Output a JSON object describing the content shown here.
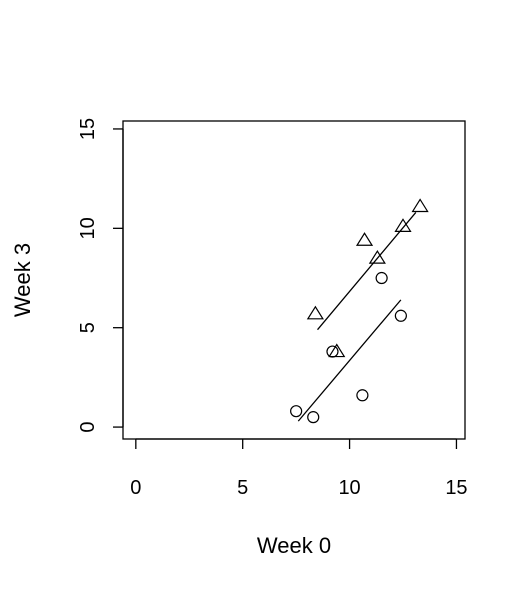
{
  "chart_data": {
    "type": "scatter",
    "title": "",
    "xlabel": "Week 0",
    "ylabel": "Week 3",
    "xlim": [
      -0.6,
      15.4
    ],
    "ylim": [
      -0.6,
      15.4
    ],
    "xticks": [
      0,
      5,
      10,
      15
    ],
    "yticks": [
      0,
      5,
      10,
      15
    ],
    "grid": false,
    "series": [
      {
        "marker": "circle",
        "points": [
          {
            "x": 7.5,
            "y": 0.8
          },
          {
            "x": 8.3,
            "y": 0.5
          },
          {
            "x": 9.2,
            "y": 3.8
          },
          {
            "x": 10.6,
            "y": 1.6
          },
          {
            "x": 11.5,
            "y": 7.5
          },
          {
            "x": 12.4,
            "y": 5.6
          }
        ],
        "fit_line": [
          {
            "x": 7.6,
            "y": 0.3
          },
          {
            "x": 12.4,
            "y": 6.4
          }
        ]
      },
      {
        "marker": "triangle",
        "points": [
          {
            "x": 8.4,
            "y": 5.7
          },
          {
            "x": 9.4,
            "y": 3.8
          },
          {
            "x": 10.7,
            "y": 9.4
          },
          {
            "x": 11.3,
            "y": 8.5
          },
          {
            "x": 12.5,
            "y": 10.1
          },
          {
            "x": 13.3,
            "y": 11.1
          }
        ],
        "fit_line": [
          {
            "x": 8.5,
            "y": 4.9
          },
          {
            "x": 13.1,
            "y": 10.8
          }
        ]
      }
    ]
  }
}
